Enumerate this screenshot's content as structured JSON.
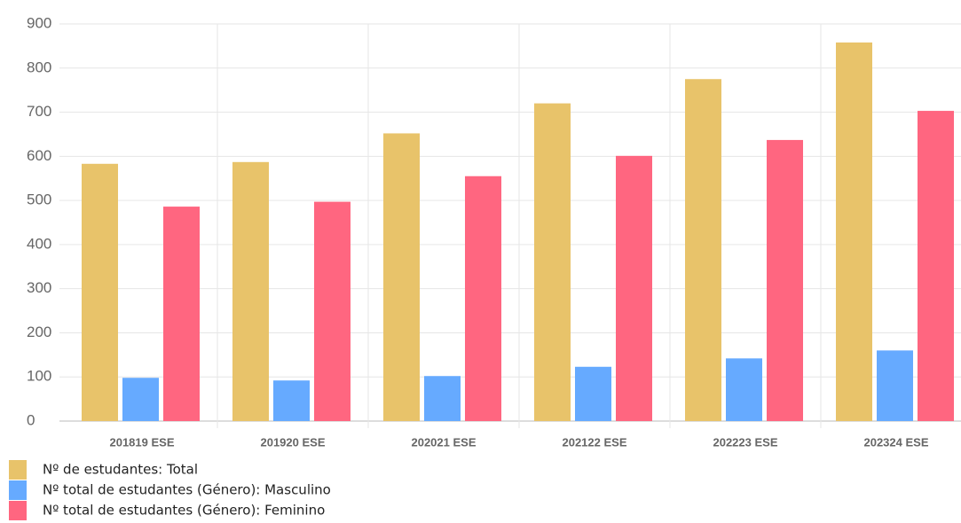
{
  "chart_data": {
    "type": "bar",
    "categories": [
      "201819 ESE",
      "201920 ESE",
      "202021 ESE",
      "202122 ESE",
      "202223 ESE",
      "202324 ESE"
    ],
    "series": [
      {
        "name": "Nº de estudantes: Total",
        "color": "#e8c36a",
        "values": [
          583,
          587,
          652,
          720,
          775,
          858
        ]
      },
      {
        "name": "Nº total de estudantes (Género): Masculino",
        "color": "#66aaff",
        "values": [
          98,
          92,
          102,
          123,
          142,
          160
        ]
      },
      {
        "name": "Nº total de estudantes (Género): Feminino",
        "color": "#ff6680",
        "values": [
          486,
          497,
          555,
          601,
          637,
          703
        ]
      }
    ],
    "ylim": [
      0,
      900
    ],
    "yticks": [
      0,
      100,
      200,
      300,
      400,
      500,
      600,
      700,
      800,
      900
    ],
    "grid": true
  }
}
